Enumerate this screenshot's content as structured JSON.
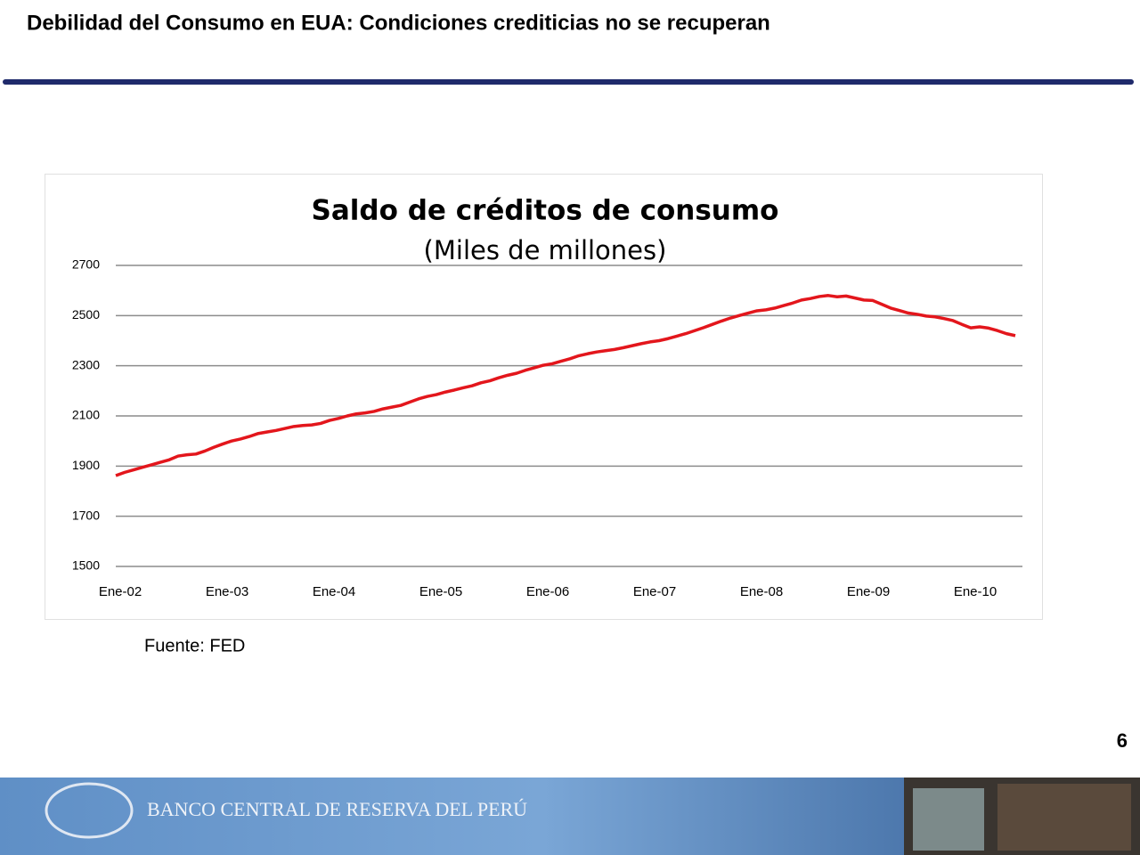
{
  "header": {
    "title": "Debilidad del Consumo en EUA: Condiciones crediticias no se recuperan"
  },
  "chart_data": {
    "type": "line",
    "title": "Saldo de créditos de consumo",
    "subtitle": "(Miles de millones)",
    "categories": [
      "Ene-02",
      null,
      null,
      null,
      null,
      null,
      null,
      null,
      null,
      null,
      null,
      null,
      "Ene-03",
      null,
      null,
      null,
      null,
      null,
      null,
      null,
      null,
      null,
      null,
      null,
      "Ene-04",
      null,
      null,
      null,
      null,
      null,
      null,
      null,
      null,
      null,
      null,
      null,
      "Ene-05",
      null,
      null,
      null,
      null,
      null,
      null,
      null,
      null,
      null,
      null,
      null,
      "Ene-06",
      null,
      null,
      null,
      null,
      null,
      null,
      null,
      null,
      null,
      null,
      null,
      "Ene-07",
      null,
      null,
      null,
      null,
      null,
      null,
      null,
      null,
      null,
      null,
      null,
      "Ene-08",
      null,
      null,
      null,
      null,
      null,
      null,
      null,
      null,
      null,
      null,
      null,
      "Ene-09",
      null,
      null,
      null,
      null,
      null,
      null,
      null,
      null,
      null,
      null,
      null,
      "Ene-10",
      null,
      null,
      null,
      null,
      null
    ],
    "values": [
      1862,
      1875,
      1885,
      1895,
      1905,
      1915,
      1925,
      1940,
      1945,
      1948,
      1960,
      1975,
      1988,
      2000,
      2008,
      2018,
      2030,
      2036,
      2042,
      2050,
      2058,
      2062,
      2064,
      2070,
      2082,
      2090,
      2100,
      2108,
      2112,
      2118,
      2128,
      2135,
      2142,
      2155,
      2168,
      2178,
      2185,
      2195,
      2203,
      2212,
      2220,
      2232,
      2240,
      2252,
      2262,
      2270,
      2282,
      2292,
      2302,
      2308,
      2318,
      2328,
      2340,
      2348,
      2355,
      2360,
      2365,
      2372,
      2380,
      2388,
      2395,
      2400,
      2408,
      2418,
      2428,
      2440,
      2452,
      2465,
      2478,
      2490,
      2500,
      2510,
      2519,
      2523,
      2530,
      2540,
      2550,
      2562,
      2568,
      2576,
      2580,
      2575,
      2578,
      2570,
      2562,
      2560,
      2545,
      2530,
      2520,
      2510,
      2505,
      2498,
      2495,
      2488,
      2480,
      2465,
      2451,
      2455,
      2450,
      2440,
      2428,
      2420
    ],
    "color": "#e3161c",
    "ylim": [
      1500,
      2700
    ],
    "yticks": [
      1500,
      1700,
      1900,
      2100,
      2300,
      2500,
      2700
    ],
    "grid": true
  },
  "source": "Fuente: FED",
  "page_number": "6",
  "footer": {
    "bank_name": "BANCO CENTRAL DE RESERVA DEL PERÚ"
  }
}
